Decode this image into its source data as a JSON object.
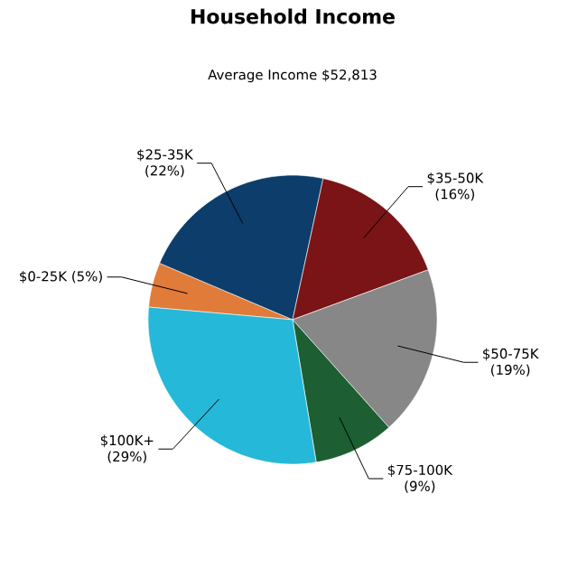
{
  "chart_data": {
    "type": "pie",
    "title": "Household Income",
    "subtitle": "Average Income  $52,813",
    "categories": [
      "$0-25K",
      "$25-35K",
      "$35-50K",
      "$50-75K",
      "$75-100K",
      "$100K+"
    ],
    "values": [
      5,
      22,
      16,
      19,
      9,
      29
    ],
    "value_labels": [
      "(5%)",
      "(22%)",
      "(16%)",
      "(19%)",
      "(9%)",
      "(29%)"
    ],
    "colors": [
      "#e07b39",
      "#0d3d6b",
      "#7a1416",
      "#878787",
      "#1d5e33",
      "#25b8d8"
    ]
  }
}
